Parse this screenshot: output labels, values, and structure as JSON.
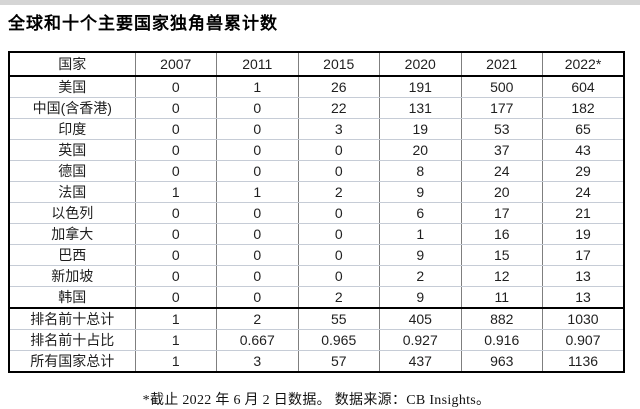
{
  "title": "全球和十个主要国家独角兽累计数",
  "footnote": "*截止 2022 年 6 月 2 日数据。 数据来源：CB Insights。",
  "chart_data": {
    "type": "table",
    "title": "全球和十个主要国家独角兽累计数",
    "columns": [
      "国家",
      "2007",
      "2011",
      "2015",
      "2020",
      "2021",
      "2022*"
    ],
    "rows": [
      {
        "label": "美国",
        "values": [
          "0",
          "1",
          "26",
          "191",
          "500",
          "604"
        ]
      },
      {
        "label": "中国(含香港)",
        "values": [
          "0",
          "0",
          "22",
          "131",
          "177",
          "182"
        ]
      },
      {
        "label": "印度",
        "values": [
          "0",
          "0",
          "3",
          "19",
          "53",
          "65"
        ]
      },
      {
        "label": "英国",
        "values": [
          "0",
          "0",
          "0",
          "20",
          "37",
          "43"
        ]
      },
      {
        "label": "德国",
        "values": [
          "0",
          "0",
          "0",
          "8",
          "24",
          "29"
        ]
      },
      {
        "label": "法国",
        "values": [
          "1",
          "1",
          "2",
          "9",
          "20",
          "24"
        ]
      },
      {
        "label": "以色列",
        "values": [
          "0",
          "0",
          "0",
          "6",
          "17",
          "21"
        ]
      },
      {
        "label": "加拿大",
        "values": [
          "0",
          "0",
          "0",
          "1",
          "16",
          "19"
        ]
      },
      {
        "label": "巴西",
        "values": [
          "0",
          "0",
          "0",
          "9",
          "15",
          "17"
        ]
      },
      {
        "label": "新加坡",
        "values": [
          "0",
          "0",
          "0",
          "2",
          "12",
          "13"
        ]
      },
      {
        "label": "韩国",
        "values": [
          "0",
          "0",
          "2",
          "9",
          "11",
          "13"
        ]
      }
    ],
    "summary_rows": [
      {
        "label": "排名前十总计",
        "values": [
          "1",
          "2",
          "55",
          "405",
          "882",
          "1030"
        ]
      },
      {
        "label": "排名前十占比",
        "values": [
          "1",
          "0.667",
          "0.965",
          "0.927",
          "0.916",
          "0.907"
        ]
      },
      {
        "label": "所有国家总计",
        "values": [
          "1",
          "3",
          "57",
          "437",
          "963",
          "1136"
        ]
      }
    ],
    "footnote": "*截止 2022 年 6 月 2 日数据。 数据来源：CB Insights。"
  }
}
